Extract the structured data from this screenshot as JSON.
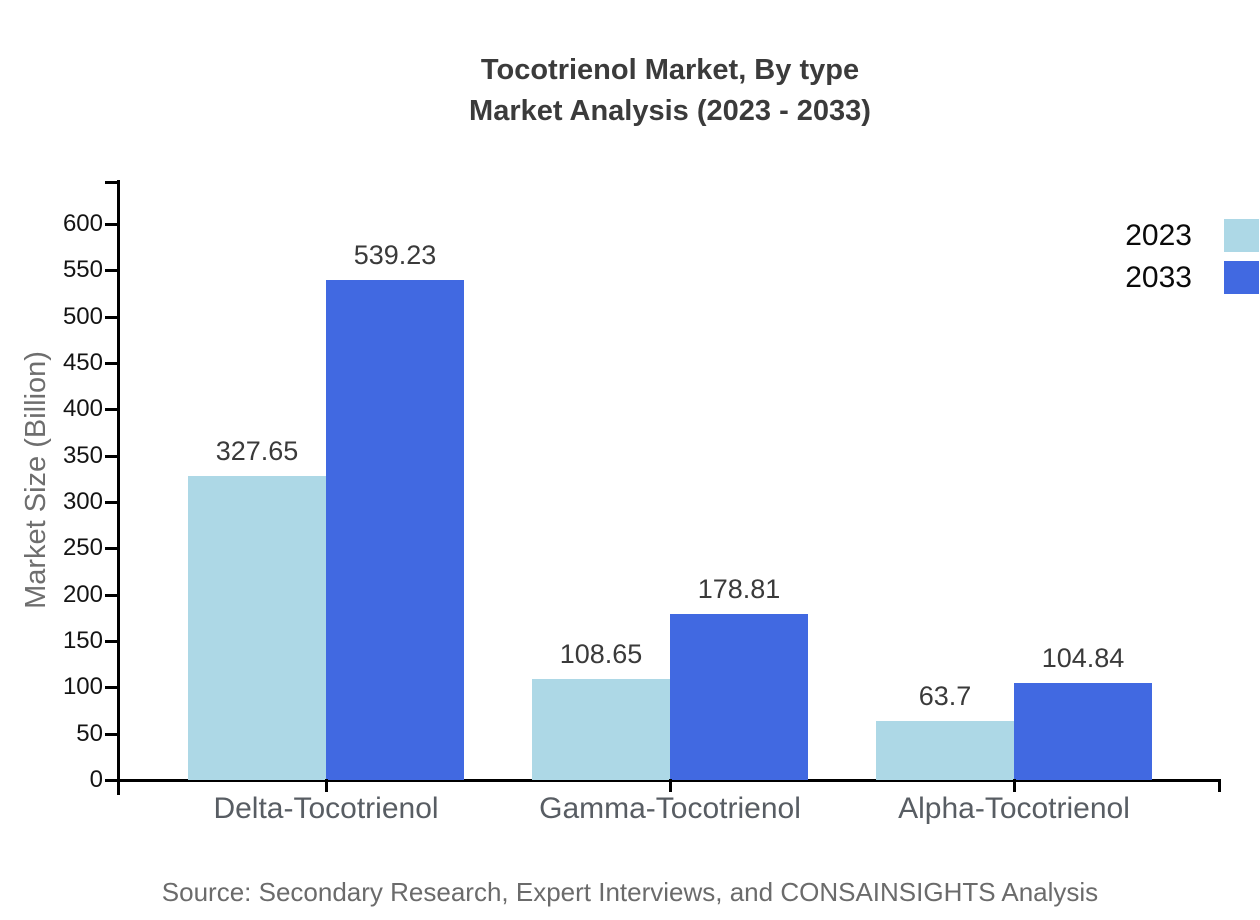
{
  "title": {
    "line1": "Tocotrienol Market, By type",
    "line2": "Market Analysis (2023 - 2033)"
  },
  "source": "Source: Secondary Research, Expert Interviews, and CONSAINSIGHTS Analysis",
  "chart_data": {
    "type": "bar",
    "title": "Tocotrienol Market, By type Market Analysis (2023 - 2033)",
    "categories": [
      "Delta-Tocotrienol",
      "Gamma-Tocotrienol",
      "Alpha-Tocotrienol"
    ],
    "series": [
      {
        "name": "2023",
        "color": "#ADD8E6",
        "values": [
          327.65,
          108.65,
          63.7
        ]
      },
      {
        "name": "2033",
        "color": "#4169E1",
        "values": [
          539.23,
          178.81,
          104.84
        ]
      }
    ],
    "xlabel": "",
    "ylabel": "Market Size (Billion)",
    "ylim": [
      0,
      650
    ],
    "yticks": [
      0,
      50,
      100,
      150,
      200,
      250,
      300,
      350,
      400,
      450,
      500,
      550,
      600
    ],
    "grid": false,
    "legend_position": "top-right",
    "value_labels": true
  },
  "colors": {
    "axis": "#000000",
    "title_text": "#3b3b3b",
    "tick_text": "#141414",
    "category_text": "#585d63",
    "value_text": "#3a3a3a",
    "y_label_text": "#6e6e6e",
    "source_text": "#6b6b6b"
  }
}
